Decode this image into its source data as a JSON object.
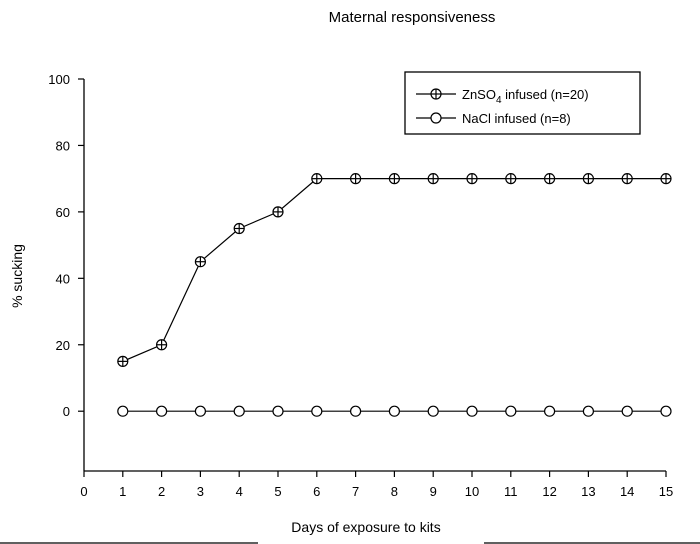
{
  "chart_data": {
    "type": "line",
    "title": "Maternal responsiveness",
    "xlabel": "Days of exposure to kits",
    "ylabel": "% sucking",
    "xlim": [
      0,
      15
    ],
    "ylim": [
      -18,
      100
    ],
    "x_ticks": [
      0,
      1,
      2,
      3,
      4,
      5,
      6,
      7,
      8,
      9,
      10,
      11,
      12,
      13,
      14,
      15
    ],
    "y_ticks": [
      0,
      20,
      40,
      60,
      80,
      100
    ],
    "grid": false,
    "legend_position": "top-right",
    "x": [
      1,
      2,
      3,
      4,
      5,
      6,
      7,
      8,
      9,
      10,
      11,
      12,
      13,
      14,
      15
    ],
    "series": [
      {
        "name": "ZnSO4 infused (n=20)",
        "name_base": "ZnSO",
        "name_sub": "4",
        "name_rest": " infused (n=20)",
        "marker": "circle-plus",
        "values": [
          15,
          20,
          45,
          55,
          60,
          70,
          70,
          70,
          70,
          70,
          70,
          70,
          70,
          70,
          70
        ]
      },
      {
        "name": "NaCl infused (n=8)",
        "marker": "open-circle",
        "values": [
          0,
          0,
          0,
          0,
          0,
          0,
          0,
          0,
          0,
          0,
          0,
          0,
          0,
          0,
          0
        ]
      }
    ],
    "colors": {
      "line": "#000000",
      "marker_fill": "#ffffff",
      "background": "#ffffff"
    }
  }
}
